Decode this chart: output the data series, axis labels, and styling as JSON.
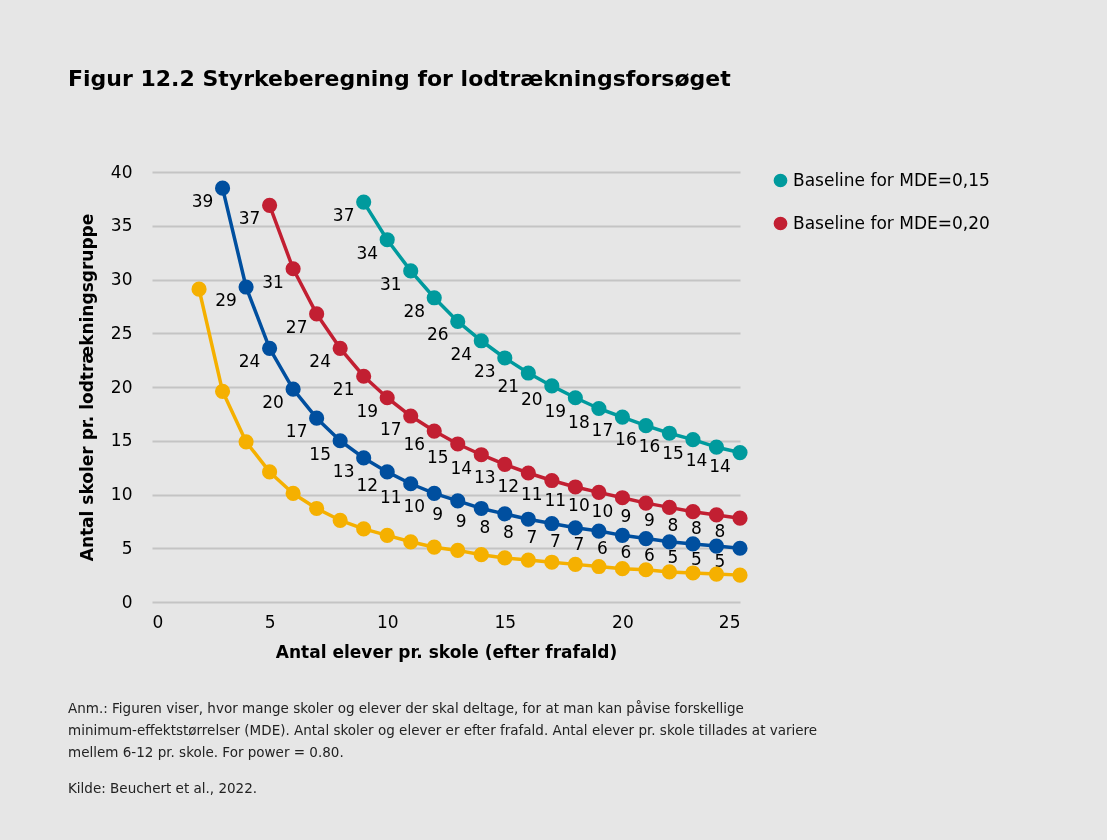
{
  "chart_data": {
    "type": "line",
    "title": "Figur 12.2      Styrkeberegning for lodtrækningsforsøget",
    "xlabel": "Antal elever pr. skole (efter frafald)",
    "ylabel": "Antal skoler pr. lodtrækningsgruppe",
    "xlim": [
      0,
      25
    ],
    "xticks": [
      0,
      5,
      10,
      15,
      20,
      25
    ],
    "ylim": [
      0,
      40
    ],
    "yticks": [
      0,
      5,
      10,
      15,
      20,
      25,
      30,
      35,
      40
    ],
    "grid": "y",
    "legend": "right",
    "marker": "circle",
    "line_style": "solid",
    "series": [
      {
        "name": "Baseline for MDE=0,15",
        "color": "#009a9d",
        "x": [
          9,
          10,
          11,
          12,
          13,
          14,
          15,
          16,
          17,
          18,
          19,
          20,
          21,
          22,
          23,
          24,
          25
        ],
        "values": [
          37.2,
          33.7,
          30.8,
          28.3,
          26.1,
          24.3,
          22.7,
          21.3,
          20.1,
          19.0,
          18.0,
          17.2,
          16.4,
          15.7,
          15.1,
          14.4,
          13.9
        ],
        "value_labels": [
          "37",
          "34",
          "31",
          "28",
          "26",
          "24",
          "23",
          "21",
          "20",
          "19",
          "18",
          "17",
          "16",
          "16",
          "15",
          "14",
          "14"
        ]
      },
      {
        "name": "Baseline for MDE=0,20",
        "color": "#c21f32",
        "x": [
          5,
          6,
          7,
          8,
          9,
          10,
          11,
          12,
          13,
          14,
          15,
          16,
          17,
          18,
          19,
          20,
          21,
          22,
          23,
          24,
          25
        ],
        "values": [
          36.9,
          31.0,
          26.8,
          23.6,
          21.0,
          19.0,
          17.3,
          15.9,
          14.7,
          13.7,
          12.8,
          12.0,
          11.3,
          10.7,
          10.2,
          9.7,
          9.2,
          8.8,
          8.4,
          8.1,
          7.8
        ],
        "value_labels": [
          "37",
          "31",
          "27",
          "24",
          "21",
          "19",
          "17",
          "16",
          "15",
          "14",
          "13",
          "12",
          "11",
          "11",
          "10",
          "10",
          "9",
          "9",
          "8",
          "8",
          "8"
        ]
      },
      {
        "color": "#004f9f",
        "x": [
          3,
          4,
          5,
          6,
          7,
          8,
          9,
          10,
          11,
          12,
          13,
          14,
          15,
          16,
          17,
          18,
          19,
          20,
          21,
          22,
          23,
          24,
          25
        ],
        "values": [
          38.5,
          29.3,
          23.6,
          19.8,
          17.1,
          15.0,
          13.4,
          12.1,
          11.0,
          10.1,
          9.4,
          8.7,
          8.2,
          7.7,
          7.3,
          6.9,
          6.6,
          6.2,
          5.9,
          5.6,
          5.4,
          5.2,
          5.0
        ],
        "value_labels": [
          "39",
          "29",
          "24",
          "20",
          "17",
          "15",
          "13",
          "12",
          "11",
          "10",
          "9",
          "9",
          "8",
          "8",
          "7",
          "7",
          "7",
          "6",
          "6",
          "6",
          "5",
          "5",
          "5"
        ]
      },
      {
        "color": "#f5b000",
        "x": [
          2,
          3,
          4,
          5,
          6,
          7,
          8,
          9,
          10,
          11,
          12,
          13,
          14,
          15,
          16,
          17,
          18,
          19,
          20,
          21,
          22,
          23,
          24,
          25
        ],
        "values": [
          29.1,
          19.6,
          14.9,
          12.1,
          10.1,
          8.7,
          7.6,
          6.8,
          6.2,
          5.6,
          5.1,
          4.8,
          4.4,
          4.1,
          3.9,
          3.7,
          3.5,
          3.3,
          3.1,
          3.0,
          2.8,
          2.7,
          2.6,
          2.5
        ]
      }
    ],
    "annotations": [
      "Anm.:  Figuren viser, hvor mange skoler og elever der skal deltage, for at man kan påvise forskellige minimum-effektstørrelser (MDE). Antal skoler og elever er efter frafald. Antal elever pr. skole tillades at variere mellem 6-12 pr. skole. For power = 0.80.",
      "Kilde:  Beuchert et al., 2022."
    ]
  }
}
